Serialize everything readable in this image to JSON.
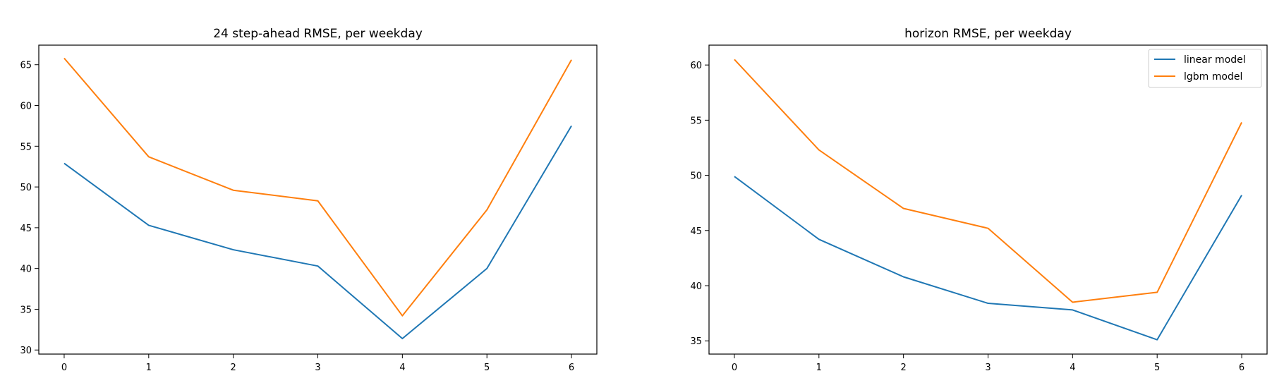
{
  "colors": {
    "linear": "#1f77b4",
    "lgbm": "#ff7f0e"
  },
  "chart_data": [
    {
      "type": "line",
      "title": "24 step-ahead RMSE, per weekday",
      "xlabel": "",
      "ylabel": "",
      "x": [
        0,
        1,
        2,
        3,
        4,
        5,
        6
      ],
      "xticks": [
        "0",
        "1",
        "2",
        "3",
        "4",
        "5",
        "6"
      ],
      "xlim": [
        -0.3,
        6.3
      ],
      "ylim": [
        29.5,
        67.4
      ],
      "yticks": [
        "30",
        "35",
        "40",
        "45",
        "50",
        "55",
        "60",
        "65"
      ],
      "series": [
        {
          "name": "linear model",
          "color": "#1f77b4",
          "values": [
            52.9,
            45.3,
            42.3,
            40.3,
            31.4,
            40.0,
            57.5
          ]
        },
        {
          "name": "lgbm model",
          "color": "#ff7f0e",
          "values": [
            65.8,
            53.7,
            49.6,
            48.3,
            34.2,
            47.2,
            65.6
          ]
        }
      ],
      "legend": null
    },
    {
      "type": "line",
      "title": "horizon RMSE, per weekday",
      "xlabel": "",
      "ylabel": "",
      "x": [
        0,
        1,
        2,
        3,
        4,
        5,
        6
      ],
      "xticks": [
        "0",
        "1",
        "2",
        "3",
        "4",
        "5",
        "6"
      ],
      "xlim": [
        -0.3,
        6.3
      ],
      "ylim": [
        33.8,
        61.8
      ],
      "yticks": [
        "35",
        "40",
        "45",
        "50",
        "55",
        "60"
      ],
      "series": [
        {
          "name": "linear model",
          "color": "#1f77b4",
          "values": [
            49.9,
            44.2,
            40.8,
            38.4,
            37.8,
            35.1,
            48.2
          ]
        },
        {
          "name": "lgbm model",
          "color": "#ff7f0e",
          "values": [
            60.5,
            52.3,
            47.0,
            45.2,
            38.5,
            39.4,
            54.8
          ]
        }
      ],
      "legend": {
        "placement": "top-right",
        "entries": [
          "linear model",
          "lgbm model"
        ]
      }
    }
  ]
}
